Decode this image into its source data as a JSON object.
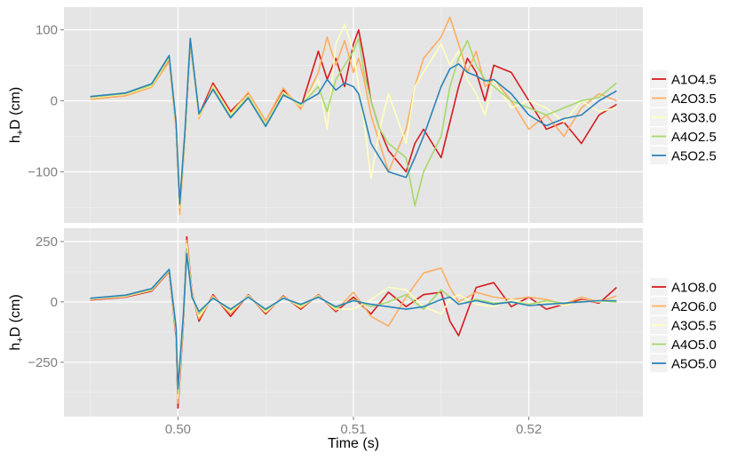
{
  "chart_data": [
    {
      "type": "line",
      "ylabel": "h+D (cm)",
      "ylabel_main": "h",
      "ylabel_sub": "+",
      "ylabel_rest": "D (cm)",
      "xlim": [
        0.4935,
        0.5265
      ],
      "ylim": [
        -172,
        132
      ],
      "yticks": [
        -100,
        0,
        100
      ],
      "ytick_labels": [
        "−100",
        "0",
        "100"
      ],
      "xticks": [
        0.5,
        0.51,
        0.52
      ],
      "legend": "right",
      "series": [
        {
          "name": "A1O4.5",
          "color": "#d7191c",
          "x": [
            0.495,
            0.497,
            0.4985,
            0.4995,
            0.4999,
            0.5001,
            0.5004,
            0.5007,
            0.5012,
            0.502,
            0.503,
            0.504,
            0.505,
            0.506,
            0.507,
            0.508,
            0.5085,
            0.509,
            0.5095,
            0.51,
            0.5103,
            0.5106,
            0.511,
            0.5115,
            0.512,
            0.513,
            0.5135,
            0.514,
            0.515,
            0.5155,
            0.516,
            0.5165,
            0.517,
            0.5175,
            0.518,
            0.519,
            0.52,
            0.521,
            0.522,
            0.523,
            0.524,
            0.525
          ],
          "y": [
            3,
            8,
            20,
            58,
            -40,
            -155,
            -50,
            80,
            -20,
            25,
            -15,
            10,
            -30,
            15,
            -10,
            70,
            30,
            60,
            20,
            80,
            100,
            60,
            0,
            -40,
            -70,
            -100,
            -60,
            -40,
            -80,
            -30,
            20,
            60,
            40,
            0,
            50,
            40,
            0,
            -40,
            -30,
            -60,
            -20,
            -5
          ]
        },
        {
          "name": "A2O3.5",
          "color": "#fdae61",
          "x": [
            0.495,
            0.497,
            0.4985,
            0.4995,
            0.4999,
            0.5001,
            0.5004,
            0.5007,
            0.5012,
            0.502,
            0.503,
            0.504,
            0.505,
            0.506,
            0.507,
            0.508,
            0.5085,
            0.509,
            0.5095,
            0.51,
            0.5103,
            0.5106,
            0.511,
            0.5115,
            0.512,
            0.513,
            0.5135,
            0.514,
            0.515,
            0.5155,
            0.516,
            0.5165,
            0.517,
            0.5175,
            0.518,
            0.519,
            0.52,
            0.521,
            0.522,
            0.523,
            0.524,
            0.525
          ],
          "y": [
            2,
            7,
            19,
            55,
            -42,
            -160,
            -55,
            85,
            -25,
            22,
            -18,
            12,
            -28,
            18,
            -12,
            40,
            90,
            50,
            85,
            40,
            60,
            30,
            -20,
            -60,
            -100,
            -40,
            20,
            60,
            90,
            118,
            80,
            40,
            70,
            20,
            30,
            0,
            -40,
            -20,
            -50,
            -10,
            10,
            0
          ]
        },
        {
          "name": "A3O3.0",
          "color": "#ffffbf",
          "x": [
            0.495,
            0.497,
            0.4985,
            0.4995,
            0.4999,
            0.5001,
            0.5004,
            0.5007,
            0.5012,
            0.502,
            0.503,
            0.504,
            0.505,
            0.506,
            0.507,
            0.508,
            0.5085,
            0.509,
            0.5095,
            0.51,
            0.5103,
            0.5106,
            0.511,
            0.5115,
            0.512,
            0.513,
            0.5135,
            0.514,
            0.515,
            0.5155,
            0.516,
            0.5165,
            0.517,
            0.5175,
            0.518,
            0.519,
            0.52,
            0.521,
            0.522,
            0.523,
            0.524,
            0.525
          ],
          "y": [
            4,
            9,
            21,
            60,
            -38,
            -150,
            -48,
            82,
            -22,
            20,
            -20,
            8,
            -32,
            12,
            -8,
            30,
            -40,
            80,
            108,
            70,
            20,
            -30,
            -110,
            -40,
            10,
            -60,
            20,
            40,
            80,
            50,
            70,
            30,
            10,
            -20,
            30,
            -10,
            0,
            -10,
            -30,
            0,
            -15,
            -10
          ]
        },
        {
          "name": "A4O2.5",
          "color": "#a6d96a",
          "x": [
            0.495,
            0.497,
            0.4985,
            0.4995,
            0.4999,
            0.5001,
            0.5004,
            0.5007,
            0.5012,
            0.502,
            0.503,
            0.504,
            0.505,
            0.506,
            0.507,
            0.508,
            0.5085,
            0.509,
            0.5095,
            0.51,
            0.5103,
            0.5106,
            0.511,
            0.5115,
            0.512,
            0.513,
            0.5135,
            0.514,
            0.515,
            0.5155,
            0.516,
            0.5165,
            0.517,
            0.5175,
            0.518,
            0.519,
            0.52,
            0.521,
            0.522,
            0.523,
            0.524,
            0.525
          ],
          "y": [
            5,
            10,
            22,
            62,
            -35,
            -148,
            -45,
            84,
            -20,
            18,
            -22,
            6,
            -34,
            10,
            -6,
            20,
            -15,
            30,
            50,
            70,
            88,
            40,
            0,
            -40,
            -60,
            -80,
            -148,
            -100,
            -50,
            20,
            60,
            85,
            50,
            30,
            20,
            0,
            -10,
            -20,
            -10,
            0,
            5,
            25
          ]
        },
        {
          "name": "A5O2.5",
          "color": "#2b83ba",
          "x": [
            0.495,
            0.497,
            0.4985,
            0.4995,
            0.4999,
            0.5001,
            0.5004,
            0.5007,
            0.5012,
            0.502,
            0.503,
            0.504,
            0.505,
            0.506,
            0.507,
            0.508,
            0.5085,
            0.509,
            0.5095,
            0.51,
            0.5103,
            0.5106,
            0.511,
            0.5115,
            0.512,
            0.513,
            0.5135,
            0.514,
            0.515,
            0.5155,
            0.516,
            0.5165,
            0.517,
            0.5175,
            0.518,
            0.519,
            0.52,
            0.521,
            0.522,
            0.523,
            0.524,
            0.525
          ],
          "y": [
            6,
            11,
            24,
            64,
            -32,
            -145,
            -42,
            88,
            -18,
            16,
            -24,
            4,
            -36,
            8,
            -4,
            10,
            30,
            15,
            25,
            20,
            10,
            -20,
            -60,
            -80,
            -100,
            -108,
            -80,
            -50,
            20,
            45,
            52,
            40,
            35,
            28,
            30,
            10,
            -20,
            -35,
            -25,
            -20,
            0,
            14
          ]
        }
      ]
    },
    {
      "type": "line",
      "ylabel": "h+D (cm)",
      "ylabel_main": "h",
      "ylabel_sub": "+",
      "ylabel_rest": "D (cm)",
      "xlabel": "Time (s)",
      "xlim": [
        0.4935,
        0.5265
      ],
      "ylim": [
        -475,
        305
      ],
      "yticks": [
        -250,
        0,
        250
      ],
      "ytick_labels": [
        "−250",
        "0",
        "250"
      ],
      "xticks": [
        0.5,
        0.51,
        0.52
      ],
      "xtick_labels": [
        "0.50",
        "0.51",
        "0.52"
      ],
      "legend": "right",
      "series": [
        {
          "name": "A1O8.0",
          "color": "#d7191c",
          "x": [
            0.495,
            0.497,
            0.4985,
            0.4995,
            0.4999,
            0.5,
            0.5003,
            0.5005,
            0.5008,
            0.5012,
            0.502,
            0.503,
            0.504,
            0.505,
            0.506,
            0.507,
            0.508,
            0.509,
            0.51,
            0.511,
            0.512,
            0.513,
            0.514,
            0.515,
            0.5155,
            0.516,
            0.517,
            0.518,
            0.519,
            0.52,
            0.521,
            0.522,
            0.523,
            0.524,
            0.525
          ],
          "y": [
            8,
            20,
            45,
            125,
            -150,
            -440,
            -100,
            270,
            40,
            -80,
            30,
            -60,
            30,
            -50,
            25,
            -30,
            30,
            -40,
            20,
            -50,
            40,
            -20,
            30,
            40,
            -80,
            -140,
            60,
            80,
            -20,
            20,
            -30,
            -10,
            10,
            -5,
            60
          ]
        },
        {
          "name": "A2O6.0",
          "color": "#fdae61",
          "x": [
            0.495,
            0.497,
            0.4985,
            0.4995,
            0.4999,
            0.5,
            0.5003,
            0.5005,
            0.5008,
            0.5012,
            0.502,
            0.503,
            0.504,
            0.505,
            0.506,
            0.507,
            0.508,
            0.509,
            0.51,
            0.511,
            0.512,
            0.513,
            0.514,
            0.515,
            0.5155,
            0.516,
            0.517,
            0.518,
            0.519,
            0.52,
            0.521,
            0.522,
            0.523,
            0.524,
            0.525
          ],
          "y": [
            10,
            22,
            48,
            128,
            -140,
            -420,
            -90,
            255,
            35,
            -70,
            25,
            -50,
            28,
            -45,
            22,
            -25,
            28,
            -35,
            40,
            -60,
            -100,
            20,
            120,
            140,
            60,
            0,
            40,
            20,
            10,
            20,
            10,
            -10,
            20,
            0,
            25
          ]
        },
        {
          "name": "A3O5.5",
          "color": "#ffffbf",
          "x": [
            0.495,
            0.497,
            0.4985,
            0.4995,
            0.4999,
            0.5,
            0.5003,
            0.5005,
            0.5008,
            0.5012,
            0.502,
            0.503,
            0.504,
            0.505,
            0.506,
            0.507,
            0.508,
            0.509,
            0.51,
            0.511,
            0.512,
            0.513,
            0.514,
            0.515,
            0.5155,
            0.516,
            0.517,
            0.518,
            0.519,
            0.52,
            0.521,
            0.522,
            0.523,
            0.524,
            0.525
          ],
          "y": [
            12,
            24,
            50,
            130,
            -130,
            -400,
            -80,
            240,
            30,
            -60,
            20,
            -40,
            25,
            -40,
            20,
            -20,
            25,
            -30,
            -30,
            10,
            60,
            50,
            -20,
            -50,
            10,
            30,
            -10,
            -20,
            10,
            -10,
            0,
            -15,
            5,
            0,
            10
          ]
        },
        {
          "name": "A4O5.0",
          "color": "#a6d96a",
          "x": [
            0.495,
            0.497,
            0.4985,
            0.4995,
            0.4999,
            0.5,
            0.5003,
            0.5005,
            0.5008,
            0.5012,
            0.502,
            0.503,
            0.504,
            0.505,
            0.506,
            0.507,
            0.508,
            0.509,
            0.51,
            0.511,
            0.512,
            0.513,
            0.514,
            0.515,
            0.5155,
            0.516,
            0.517,
            0.518,
            0.519,
            0.52,
            0.521,
            0.522,
            0.523,
            0.524,
            0.525
          ],
          "y": [
            14,
            26,
            52,
            132,
            -120,
            -380,
            -70,
            220,
            25,
            -50,
            18,
            -35,
            22,
            -35,
            18,
            -15,
            22,
            -25,
            10,
            -20,
            0,
            30,
            -30,
            50,
            20,
            -10,
            10,
            -5,
            0,
            -10,
            5,
            -5,
            0,
            5,
            0
          ]
        },
        {
          "name": "A5O5.0",
          "color": "#2b83ba",
          "x": [
            0.495,
            0.497,
            0.4985,
            0.4995,
            0.4999,
            0.5,
            0.5003,
            0.5005,
            0.5008,
            0.5012,
            0.502,
            0.503,
            0.504,
            0.505,
            0.506,
            0.507,
            0.508,
            0.509,
            0.51,
            0.511,
            0.512,
            0.513,
            0.514,
            0.515,
            0.5155,
            0.516,
            0.517,
            0.518,
            0.519,
            0.52,
            0.521,
            0.522,
            0.523,
            0.524,
            0.525
          ],
          "y": [
            15,
            28,
            55,
            135,
            -110,
            -360,
            -60,
            200,
            20,
            -40,
            15,
            -30,
            20,
            -30,
            15,
            -10,
            20,
            -20,
            5,
            -10,
            -20,
            -30,
            -20,
            10,
            20,
            -10,
            5,
            -10,
            0,
            -15,
            -10,
            -5,
            0,
            5,
            5
          ]
        }
      ]
    }
  ]
}
